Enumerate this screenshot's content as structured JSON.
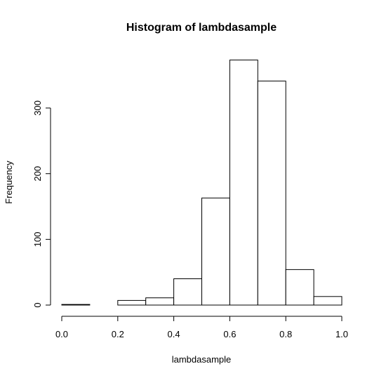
{
  "chart_data": {
    "type": "bar",
    "title": "Histogram of lambdasample",
    "xlabel": "lambdasample",
    "ylabel": "Frequency",
    "xlim": [
      0.0,
      1.0
    ],
    "ylim": [
      0,
      375
    ],
    "bins": [
      {
        "x0": 0.0,
        "x1": 0.1,
        "count": 1
      },
      {
        "x0": 0.1,
        "x1": 0.2,
        "count": 0
      },
      {
        "x0": 0.2,
        "x1": 0.3,
        "count": 7
      },
      {
        "x0": 0.3,
        "x1": 0.4,
        "count": 11
      },
      {
        "x0": 0.4,
        "x1": 0.5,
        "count": 40
      },
      {
        "x0": 0.5,
        "x1": 0.6,
        "count": 163
      },
      {
        "x0": 0.6,
        "x1": 0.7,
        "count": 373
      },
      {
        "x0": 0.7,
        "x1": 0.8,
        "count": 341
      },
      {
        "x0": 0.8,
        "x1": 0.9,
        "count": 54
      },
      {
        "x0": 0.9,
        "x1": 1.0,
        "count": 13
      }
    ],
    "x_ticks": [
      "0.0",
      "0.2",
      "0.4",
      "0.6",
      "0.8",
      "1.0"
    ],
    "y_ticks": [
      "0",
      "100",
      "200",
      "300"
    ],
    "grid": false,
    "legend": "none"
  }
}
